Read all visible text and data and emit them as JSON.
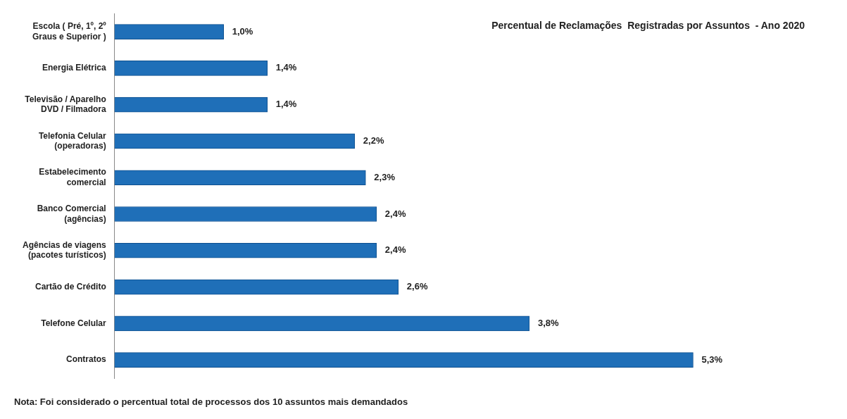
{
  "chart_data": {
    "type": "bar",
    "orientation": "horizontal",
    "title": "Percentual de Reclamações  Registradas por Assuntos  - Ano 2020",
    "categories": [
      "Escola ( Pré, 1º, 2º Graus e Superior )",
      "Energia Elétrica",
      "Televisão / Aparelho DVD / Filmadora",
      "Telefonia Celular (operadoras)",
      "Estabelecimento comercial",
      "Banco Comercial (agências)",
      "Agências de viagens (pacotes turísticos)",
      "Cartão de Crédito",
      "Telefone Celular",
      "Contratos"
    ],
    "values": [
      1.0,
      1.4,
      1.4,
      2.2,
      2.3,
      2.4,
      2.4,
      2.6,
      3.8,
      5.3
    ],
    "value_labels": [
      "1,0%",
      "1,4%",
      "1,4%",
      "2,2%",
      "2,3%",
      "2,4%",
      "2,4%",
      "2,6%",
      "3,8%",
      "5,3%"
    ],
    "color": "#1f6fb8",
    "grid": false,
    "legend": false,
    "annotations": [
      "Nota: Foi considerado o percentual total de processos dos 10 assuntos mais demandados"
    ]
  }
}
